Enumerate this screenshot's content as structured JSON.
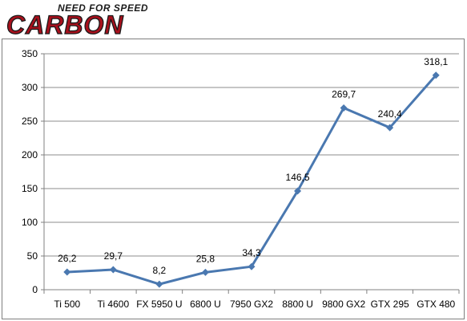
{
  "logo": {
    "top_text": "NEED FOR SPEED",
    "main_text": "CARBON"
  },
  "colors": {
    "series": "#4a78b0",
    "grid": "#8c8c8c",
    "axis": "#808080",
    "logo_red": "#a8101c",
    "logo_dark": "#1a1a1a"
  },
  "chart_data": {
    "type": "line",
    "categories": [
      "Ti 500",
      "Ti 4600",
      "FX 5950 U",
      "6800 U",
      "7950 GX2",
      "8800 U",
      "9800 GX2",
      "GTX 295",
      "GTX 480"
    ],
    "series": [
      {
        "values": [
          26.2,
          29.7,
          8.2,
          25.8,
          34.3,
          146.5,
          269.7,
          240.4,
          318.1
        ],
        "labels": [
          "26,2",
          "29,7",
          "8,2",
          "25,8",
          "34,3",
          "146,5",
          "269,7",
          "240,4",
          "318,1"
        ],
        "marker": "diamond"
      }
    ],
    "title": "",
    "xlabel": "",
    "ylabel": "",
    "ylim": [
      0,
      350
    ],
    "yticks": [
      0,
      50,
      100,
      150,
      200,
      250,
      300,
      350
    ],
    "ytick_labels": [
      "0",
      "50",
      "100",
      "150",
      "200",
      "250",
      "300",
      "350"
    ],
    "grid": true,
    "legend": "none"
  }
}
